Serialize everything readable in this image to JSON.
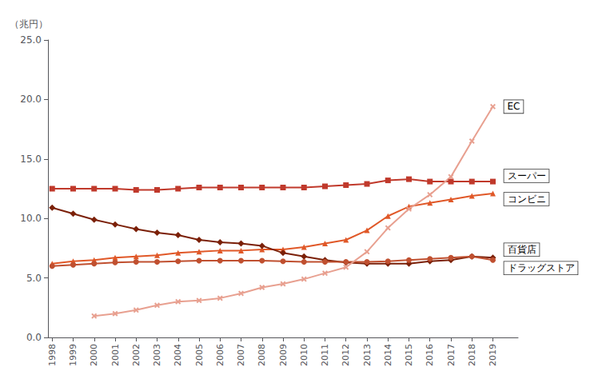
{
  "chart_data": {
    "type": "line",
    "ylabel": "（兆円）",
    "x": [
      1998,
      1999,
      2000,
      2001,
      2002,
      2003,
      2004,
      2005,
      2006,
      2007,
      2008,
      2009,
      2010,
      2011,
      2012,
      2013,
      2014,
      2015,
      2016,
      2017,
      2018,
      2019
    ],
    "xlim": [
      1997.8,
      2020.2
    ],
    "xticks": [
      1998,
      1999,
      2000,
      2001,
      2002,
      2003,
      2004,
      2005,
      2006,
      2007,
      2008,
      2009,
      2010,
      2011,
      2012,
      2013,
      2014,
      2015,
      2016,
      2017,
      2018,
      2019
    ],
    "ylim": [
      0.0,
      25.0
    ],
    "yticks": [
      {
        "value": 0,
        "label": "0.0"
      },
      {
        "value": 5,
        "label": "5.0"
      },
      {
        "value": 10,
        "label": "10.0"
      },
      {
        "value": 15,
        "label": "15.0"
      },
      {
        "value": 20,
        "label": "20.0"
      },
      {
        "value": 25,
        "label": "25.0"
      }
    ],
    "grid": false,
    "series": [
      {
        "name": "スーパー",
        "color": "#c0392b",
        "marker": "square",
        "values": [
          12.5,
          12.5,
          12.5,
          12.5,
          12.4,
          12.4,
          12.5,
          12.6,
          12.6,
          12.6,
          12.6,
          12.6,
          12.6,
          12.7,
          12.8,
          12.9,
          13.2,
          13.3,
          13.1,
          13.1,
          13.1,
          13.1
        ]
      },
      {
        "name": "コンビニ",
        "color": "#e05828",
        "marker": "triangle",
        "values": [
          6.2,
          6.4,
          6.5,
          6.7,
          6.8,
          6.9,
          7.1,
          7.2,
          7.3,
          7.3,
          7.4,
          7.4,
          7.6,
          7.9,
          8.2,
          9.0,
          10.2,
          11.0,
          11.3,
          11.6,
          11.9,
          12.1
        ]
      },
      {
        "name": "百貨店",
        "color": "#7b2008",
        "marker": "diamond",
        "values": [
          10.9,
          10.4,
          9.9,
          9.5,
          9.1,
          8.8,
          8.6,
          8.2,
          8.0,
          7.9,
          7.7,
          7.1,
          6.8,
          6.5,
          6.3,
          6.2,
          6.2,
          6.2,
          6.4,
          6.5,
          6.8,
          6.7
        ]
      },
      {
        "name": "ドラッグストア",
        "color": "#c05030",
        "marker": "circle",
        "values": [
          6.0,
          6.1,
          6.2,
          6.3,
          6.35,
          6.35,
          6.4,
          6.45,
          6.45,
          6.45,
          6.45,
          6.4,
          6.35,
          6.35,
          6.35,
          6.35,
          6.4,
          6.5,
          6.6,
          6.7,
          6.8,
          6.5
        ]
      },
      {
        "name": "EC",
        "color": "#e8a090",
        "marker": "x",
        "values": [
          null,
          null,
          1.8,
          2.0,
          2.3,
          2.7,
          3.0,
          3.1,
          3.3,
          3.7,
          4.2,
          4.5,
          4.9,
          5.4,
          5.9,
          7.2,
          9.2,
          10.8,
          12.0,
          13.5,
          16.5,
          19.4
        ]
      }
    ]
  }
}
